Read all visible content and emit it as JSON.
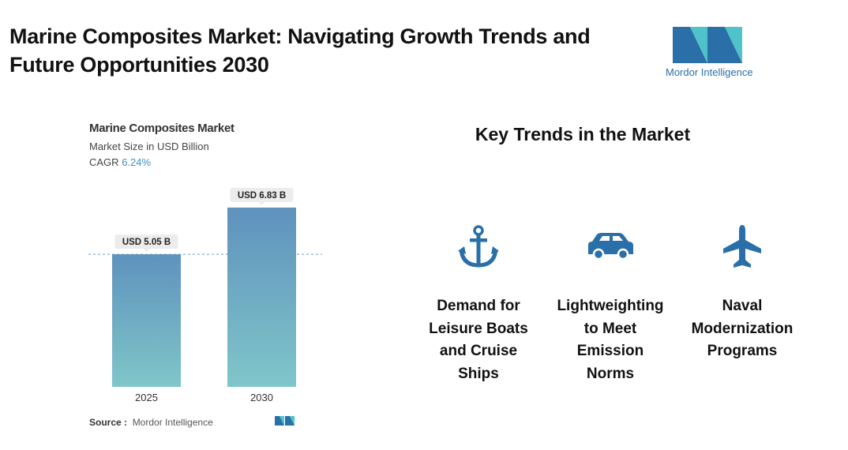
{
  "header": {
    "title": "Marine Composites Market: Navigating Growth Trends and Future Opportunities 2030",
    "logo_text": "Mordor Intelligence"
  },
  "chart_data": {
    "type": "bar",
    "title": "Marine Composites Market",
    "subtitle": "Market Size in USD Billion",
    "cagr_label": "CAGR",
    "cagr_value": "6.24%",
    "categories": [
      "2025",
      "2030"
    ],
    "values": [
      5.05,
      6.83
    ],
    "value_labels": [
      "USD 5.05 B",
      "USD 6.83 B"
    ],
    "source_label": "Source :",
    "source": "Mordor Intelligence"
  },
  "trends": {
    "title": "Key Trends in the Market",
    "items": [
      "Demand for Leisure Boats and Cruise Ships",
      "Lightweighting to Meet Emission Norms",
      "Naval Modernization Programs"
    ]
  }
}
